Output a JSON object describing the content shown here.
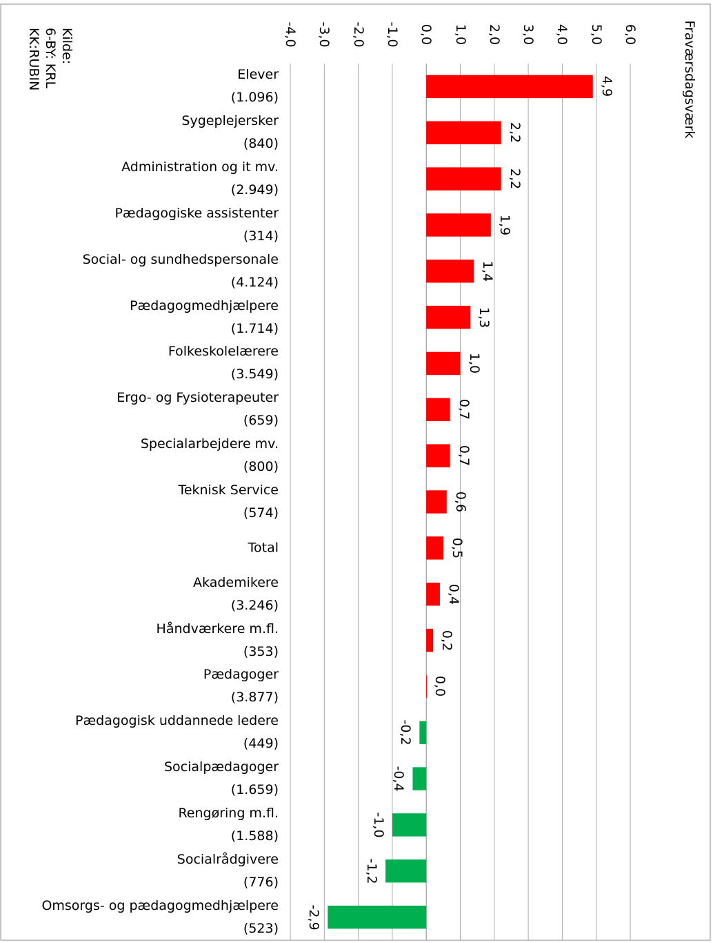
{
  "chart_data": {
    "type": "bar",
    "orientation": "horizontal",
    "title": "Fraværsdagsværk",
    "source": [
      "Kilde:",
      "6-BY: KRL",
      "KK:RUBIN"
    ],
    "categories": [
      "Elever\n(1.096)",
      "Sygeplejersker\n(840)",
      "Administration og it mv.\n(2.949)",
      "Pædagogiske assistenter\n(314)",
      "Social- og sundhedspersonale\n(4.124)",
      "Pædagogmedhjælpere\n(1.714)",
      "Folkeskolelærere\n(3.549)",
      "Ergo- og Fysioterapeuter\n(659)",
      "Specialarbejdere mv.\n(800)",
      "Teknisk Service\n(574)",
      "Total",
      "Akademikere\n(3.246)",
      "Håndværkere m.fl.\n(353)",
      "Pædagoger\n(3.877)",
      "Pædagogisk uddannede ledere\n(449)",
      "Socialpædagoger\n(1.659)",
      "Rengøring m.fl.\n(1.588)",
      "Socialrådgivere\n(776)",
      "Omsorgs- og pædagogmedhjælpere\n(523)"
    ],
    "values": [
      4.9,
      2.2,
      2.2,
      1.9,
      1.4,
      1.3,
      1.0,
      0.7,
      0.7,
      0.6,
      0.5,
      0.4,
      0.2,
      0.0,
      -0.2,
      -0.4,
      -1.0,
      -1.2,
      -2.9
    ],
    "value_labels": [
      "4,9",
      "2,2",
      "2,2",
      "1,9",
      "1,4",
      "1,3",
      "1,0",
      "0,7",
      "0,7",
      "0,6",
      "0,5",
      "0,4",
      "0,2",
      "0,0",
      "-0,2",
      "-0,4",
      "-1,0",
      "-1,2",
      "-2,9"
    ],
    "colors": [
      "#ff0000",
      "#ff0000",
      "#ff0000",
      "#ff0000",
      "#ff0000",
      "#ff0000",
      "#ff0000",
      "#ff0000",
      "#ff0000",
      "#ff0000",
      "#ff0000",
      "#ff0000",
      "#ff0000",
      "#ff0000",
      "#00b050",
      "#00b050",
      "#00b050",
      "#00b050",
      "#00b050"
    ],
    "xlim": [
      -4,
      6
    ],
    "xticks": [
      {
        "value": -4,
        "label": "-4,0"
      },
      {
        "value": -3,
        "label": "-3,0"
      },
      {
        "value": -2,
        "label": "-2,0"
      },
      {
        "value": -1,
        "label": "-1,0"
      },
      {
        "value": 0,
        "label": "0,0"
      },
      {
        "value": 1,
        "label": "1,0"
      },
      {
        "value": 2,
        "label": "2,0"
      },
      {
        "value": 3,
        "label": "3,0"
      },
      {
        "value": 4,
        "label": "4,0"
      },
      {
        "value": 5,
        "label": "5,0"
      },
      {
        "value": 6,
        "label": "6,0"
      }
    ],
    "grid": true
  }
}
